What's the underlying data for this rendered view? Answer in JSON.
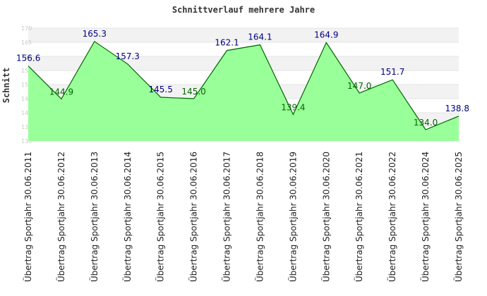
{
  "chart_data": {
    "type": "area",
    "title": "Schnittverlauf mehrere Jahre",
    "ylabel": "Schnitt",
    "xlabel": "",
    "ylim": [
      130,
      170
    ],
    "yticks": [
      130,
      135,
      140,
      145,
      150,
      155,
      160,
      165,
      170
    ],
    "grid": true,
    "categories": [
      "Übertrag Sportjahr 30.06.2011",
      "Übertrag Sportjahr 30.06.2012",
      "Übertrag Sportjahr 30.06.2013",
      "Übertrag Sportjahr 30.06.2014",
      "Übertrag Sportjahr 30.06.2015",
      "Übertrag Sportjahr 30.06.2016",
      "Übertrag Sportjahr 30.06.2017",
      "Übertrag Sportjahr 30.06.2018",
      "Übertrag Sportjahr 30.06.2019",
      "Übertrag Sportjahr 30.06.2020",
      "Übertrag Sportjahr 30.06.2021",
      "Übertrag Sportjahr 30.06.2022",
      "Übertrag Sportjahr 30.06.2024",
      "Übertrag Sportjahr 30.06.2025"
    ],
    "values": [
      156.6,
      144.9,
      165.3,
      157.3,
      145.5,
      145.0,
      162.1,
      164.1,
      139.4,
      164.9,
      147.0,
      151.7,
      134.0,
      138.8
    ],
    "data_labels": [
      "156.6",
      "144.9",
      "165.3",
      "157.3",
      "145.5",
      "145.0",
      "162.1",
      "164.1",
      "139.4",
      "164.9",
      "147.0",
      "151.7",
      "134.0",
      "138.8"
    ],
    "colors": {
      "fill": "#99ff99",
      "line": "#006600",
      "label_high": "#000080",
      "label_low": "#006600",
      "band_alt": "#f2f2f2",
      "grid": "#e4e4e4"
    }
  }
}
